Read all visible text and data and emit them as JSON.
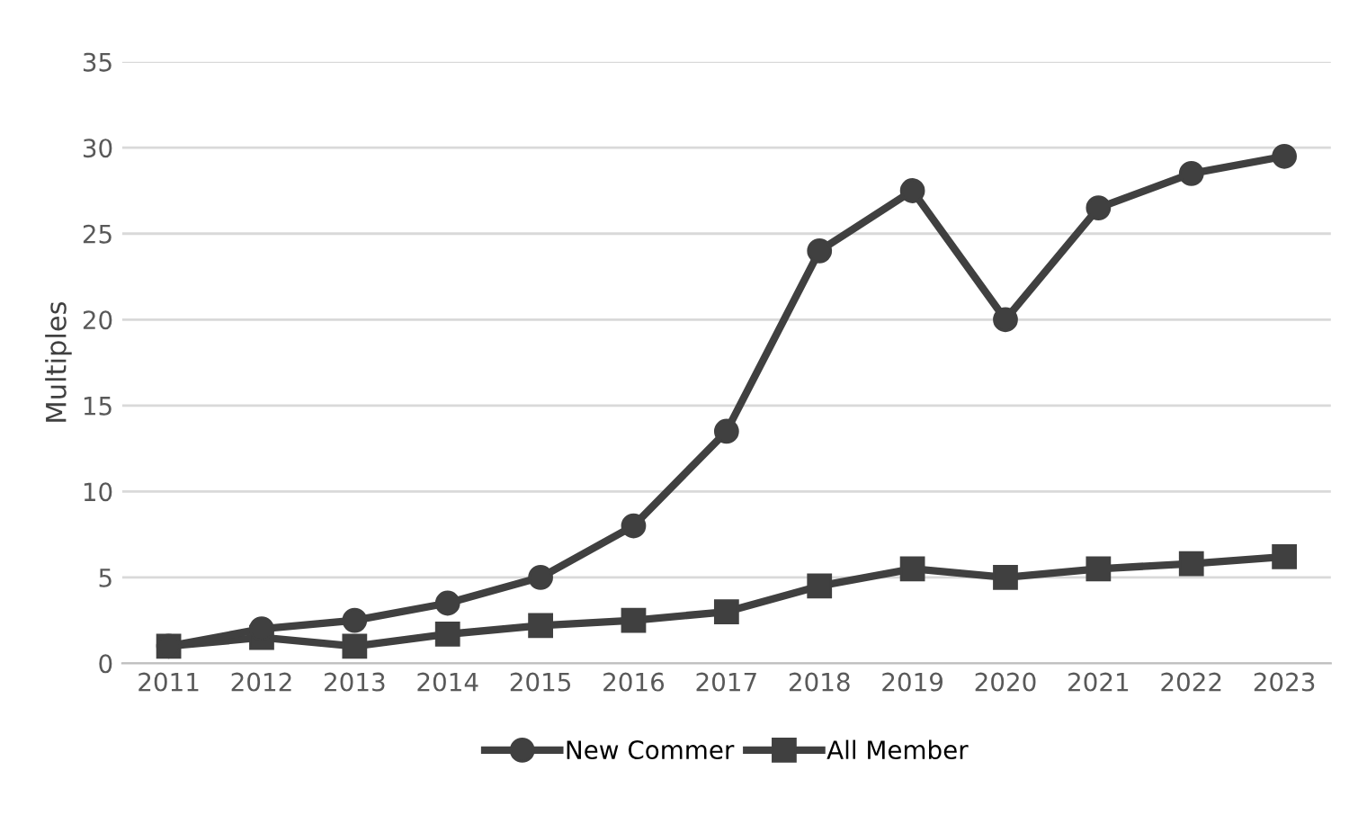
{
  "chart_data": {
    "type": "line",
    "ylabel": "Multiples",
    "categories": [
      "2011",
      "2012",
      "2013",
      "2014",
      "2015",
      "2016",
      "2017",
      "2018",
      "2019",
      "2020",
      "2021",
      "2022",
      "2023"
    ],
    "series": [
      {
        "name": "New Commer",
        "color": "#404040",
        "marker": "circle",
        "values": [
          1,
          2,
          2.5,
          3.5,
          5,
          8,
          13.5,
          24,
          27.5,
          20,
          26.5,
          28.5,
          29.5
        ]
      },
      {
        "name": "All Member",
        "color": "#404040",
        "marker": "square",
        "values": [
          1,
          1.5,
          1,
          1.7,
          2.2,
          2.5,
          3,
          4.5,
          5.5,
          5,
          5.5,
          5.8,
          6.2
        ]
      }
    ],
    "ylim": [
      0,
      35
    ],
    "yticks": [
      0,
      5,
      10,
      15,
      20,
      25,
      30,
      35
    ],
    "grid": "y",
    "legend": "bottom",
    "line_style": "solid"
  }
}
